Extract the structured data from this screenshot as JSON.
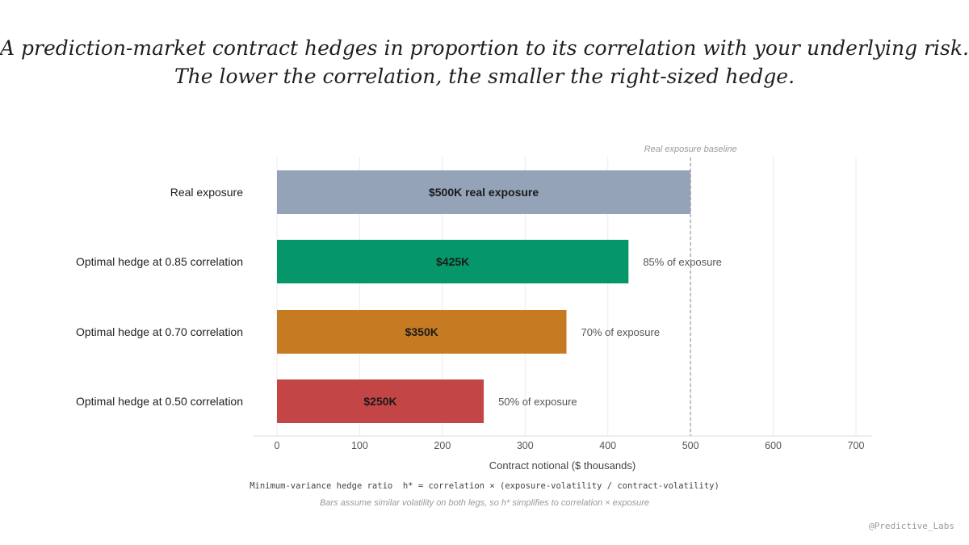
{
  "title_lines": [
    "A prediction-market contract hedges in proportion to its correlation with your underlying risk.",
    "The lower the correlation, the smaller the right-sized hedge."
  ],
  "chart_data": {
    "type": "bar",
    "orientation": "horizontal",
    "categories": [
      "Real exposure",
      "Optimal hedge at 0.85 correlation",
      "Optimal hedge at 0.70 correlation",
      "Optimal hedge at 0.50 correlation"
    ],
    "values": [
      500,
      425,
      350,
      250
    ],
    "bar_labels": [
      "$500K real exposure",
      "$425K",
      "$350K",
      "$250K"
    ],
    "side_labels": [
      "",
      "85% of exposure",
      "70% of exposure",
      "50% of exposure"
    ],
    "colors": [
      "#94a3b8",
      "#059669",
      "#c67a22",
      "#c44545"
    ],
    "xlabel": "Contract notional ($ thousands)",
    "xlim": [
      0,
      700
    ],
    "xticks": [
      0,
      100,
      200,
      300,
      400,
      500,
      600,
      700
    ],
    "grid": "vertical",
    "reference_line": {
      "value": 500,
      "label": "Real exposure baseline"
    }
  },
  "formula": "Minimum-variance hedge ratio  h* = correlation × (exposure-volatility / contract-volatility)",
  "footnote": "Bars assume similar volatility on both legs, so h* simplifies to correlation × exposure",
  "handle": "@Predictive_Labs"
}
